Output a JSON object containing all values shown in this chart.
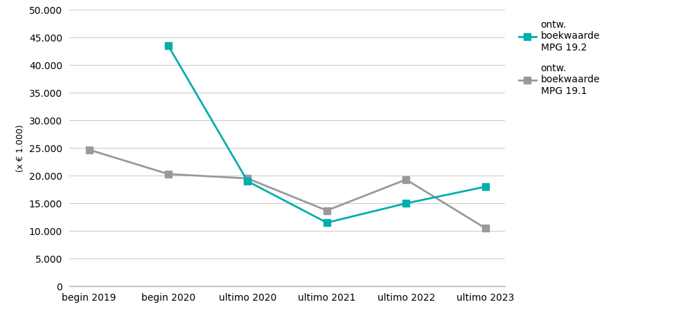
{
  "categories": [
    "begin 2019",
    "begin 2020",
    "ultimo 2020",
    "ultimo 2021",
    "ultimo 2022",
    "ultimo 2023"
  ],
  "series_mpg192": [
    null,
    43500,
    19000,
    11500,
    15000,
    18000
  ],
  "series_mpg191": [
    24700,
    20300,
    19500,
    13700,
    19300,
    10500
  ],
  "color_192": "#00AEAE",
  "color_191": "#999999",
  "marker_192": "s",
  "marker_191": "s",
  "legend_192": "ontw.\nboekwaarde\nMPG 19.2",
  "legend_191": "ontw.\nboekwaarde\nMPG 19.1",
  "ylabel": "(x € 1.000)",
  "ylim": [
    0,
    50000
  ],
  "yticks": [
    0,
    5000,
    10000,
    15000,
    20000,
    25000,
    30000,
    35000,
    40000,
    45000,
    50000
  ],
  "background_color": "#ffffff",
  "grid_color": "#cccccc",
  "linewidth": 2.0,
  "markersize": 7,
  "tick_fontsize": 10,
  "ylabel_fontsize": 9,
  "legend_fontsize": 10
}
